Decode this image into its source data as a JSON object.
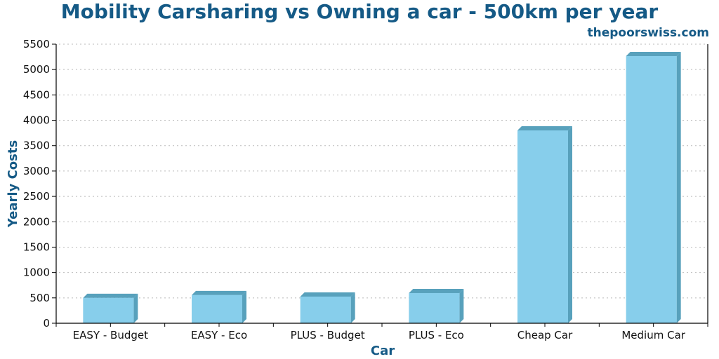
{
  "chart_data": {
    "type": "bar",
    "title": "Mobility Carsharing vs Owning a car - 500km per year",
    "subtitle": "thepoorswiss.com",
    "xlabel": "Car",
    "ylabel": "Yearly Costs",
    "categories": [
      "EASY - Budget",
      "EASY - Eco",
      "PLUS - Budget",
      "PLUS - Eco",
      "Cheap Car",
      "Medium Car"
    ],
    "values": [
      500,
      555,
      525,
      595,
      3800,
      5265
    ],
    "ylim": [
      0,
      5500
    ],
    "yticks": [
      0,
      500,
      1000,
      1500,
      2000,
      2500,
      3000,
      3500,
      4000,
      4500,
      5000,
      5500
    ],
    "ytick_labels": [
      "0",
      "500",
      "1000",
      "1500",
      "2000",
      "2500",
      "3000",
      "3500",
      "4000",
      "4500",
      "5000",
      "5500"
    ],
    "grid": true,
    "legend": "none",
    "colors": {
      "bar_front": "#87ceeb",
      "bar_side": "#58a1bc",
      "title": "#155a86",
      "grid": "#bbbbbb",
      "axis": "#000000"
    }
  }
}
